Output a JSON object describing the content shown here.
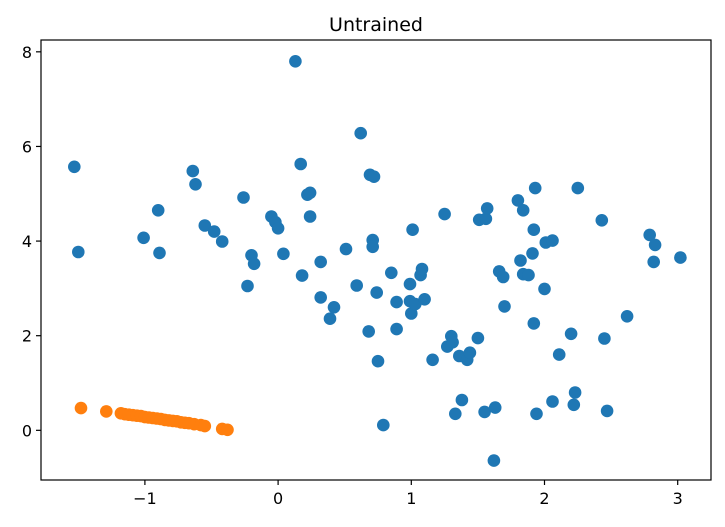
{
  "chart_data": {
    "type": "scatter",
    "title": "Untrained",
    "xlabel": "",
    "ylabel": "",
    "xlim": [
      -1.78,
      3.25
    ],
    "ylim": [
      -1.05,
      8.25
    ],
    "xticks": [
      -1,
      0,
      1,
      2,
      3
    ],
    "xtick_labels": [
      "−1",
      "0",
      "1",
      "2",
      "3"
    ],
    "yticks": [
      0,
      2,
      4,
      6,
      8
    ],
    "ytick_labels": [
      "0",
      "2",
      "4",
      "6",
      "8"
    ],
    "grid": false,
    "legend": false,
    "series": [
      {
        "color": "#1f77b4",
        "points": [
          [
            0.13,
            7.8
          ],
          [
            0.62,
            6.28
          ],
          [
            -1.53,
            5.57
          ],
          [
            -1.5,
            3.77
          ],
          [
            0.17,
            5.63
          ],
          [
            0.69,
            5.4
          ],
          [
            0.72,
            5.36
          ],
          [
            -0.64,
            5.48
          ],
          [
            -0.62,
            5.2
          ],
          [
            -0.9,
            4.65
          ],
          [
            -0.55,
            4.33
          ],
          [
            -0.48,
            4.2
          ],
          [
            -0.42,
            3.99
          ],
          [
            -1.01,
            4.07
          ],
          [
            -0.89,
            3.75
          ],
          [
            -0.26,
            4.92
          ],
          [
            -0.2,
            3.7
          ],
          [
            -0.18,
            3.52
          ],
          [
            -0.23,
            3.05
          ],
          [
            -0.05,
            4.52
          ],
          [
            -0.02,
            4.4
          ],
          [
            0.0,
            4.27
          ],
          [
            0.04,
            3.73
          ],
          [
            0.22,
            4.98
          ],
          [
            0.24,
            5.02
          ],
          [
            0.24,
            4.52
          ],
          [
            0.18,
            3.27
          ],
          [
            0.32,
            3.56
          ],
          [
            0.32,
            2.81
          ],
          [
            0.39,
            2.36
          ],
          [
            0.42,
            2.6
          ],
          [
            0.51,
            3.83
          ],
          [
            0.59,
            3.06
          ],
          [
            0.71,
            4.02
          ],
          [
            0.71,
            3.88
          ],
          [
            0.74,
            2.91
          ],
          [
            0.68,
            2.09
          ],
          [
            0.75,
            1.46
          ],
          [
            0.79,
            0.11
          ],
          [
            0.85,
            3.33
          ],
          [
            0.89,
            2.71
          ],
          [
            0.89,
            2.14
          ],
          [
            0.99,
            3.09
          ],
          [
            0.99,
            2.73
          ],
          [
            1.0,
            2.47
          ],
          [
            1.01,
            4.24
          ],
          [
            1.03,
            2.67
          ],
          [
            1.07,
            3.28
          ],
          [
            1.08,
            3.41
          ],
          [
            1.1,
            2.77
          ],
          [
            1.16,
            1.49
          ],
          [
            1.25,
            4.57
          ],
          [
            1.27,
            1.77
          ],
          [
            1.3,
            1.99
          ],
          [
            1.31,
            1.86
          ],
          [
            1.33,
            0.35
          ],
          [
            1.36,
            1.57
          ],
          [
            1.38,
            0.64
          ],
          [
            1.42,
            1.49
          ],
          [
            1.44,
            1.64
          ],
          [
            1.5,
            1.95
          ],
          [
            1.51,
            4.45
          ],
          [
            1.56,
            4.47
          ],
          [
            1.57,
            4.69
          ],
          [
            1.55,
            0.39
          ],
          [
            1.63,
            0.48
          ],
          [
            1.62,
            -0.64
          ],
          [
            1.66,
            3.36
          ],
          [
            1.69,
            3.24
          ],
          [
            1.7,
            2.62
          ],
          [
            1.8,
            4.86
          ],
          [
            1.84,
            4.65
          ],
          [
            1.82,
            3.59
          ],
          [
            1.84,
            3.3
          ],
          [
            1.88,
            3.28
          ],
          [
            1.91,
            3.74
          ],
          [
            1.92,
            4.24
          ],
          [
            1.93,
            5.12
          ],
          [
            1.92,
            2.26
          ],
          [
            1.94,
            0.35
          ],
          [
            2.0,
            2.99
          ],
          [
            2.01,
            3.97
          ],
          [
            2.06,
            4.01
          ],
          [
            2.06,
            0.61
          ],
          [
            2.11,
            1.6
          ],
          [
            2.2,
            2.04
          ],
          [
            2.22,
            0.54
          ],
          [
            2.23,
            0.8
          ],
          [
            2.25,
            5.12
          ],
          [
            2.43,
            4.44
          ],
          [
            2.45,
            1.94
          ],
          [
            2.47,
            0.41
          ],
          [
            2.62,
            2.41
          ],
          [
            2.79,
            4.13
          ],
          [
            2.83,
            3.92
          ],
          [
            2.82,
            3.56
          ],
          [
            3.02,
            3.65
          ]
        ]
      },
      {
        "color": "#ff7f0e",
        "points": [
          [
            -1.48,
            0.47
          ],
          [
            -1.29,
            0.4
          ],
          [
            -1.18,
            0.36
          ],
          [
            -1.15,
            0.34
          ],
          [
            -1.12,
            0.33
          ],
          [
            -1.09,
            0.32
          ],
          [
            -1.06,
            0.31
          ],
          [
            -1.03,
            0.3
          ],
          [
            -1.0,
            0.28
          ],
          [
            -0.97,
            0.27
          ],
          [
            -0.94,
            0.26
          ],
          [
            -0.91,
            0.25
          ],
          [
            -0.88,
            0.24
          ],
          [
            -0.85,
            0.22
          ],
          [
            -0.82,
            0.21
          ],
          [
            -0.79,
            0.2
          ],
          [
            -0.76,
            0.19
          ],
          [
            -0.73,
            0.17
          ],
          [
            -0.7,
            0.16
          ],
          [
            -0.67,
            0.15
          ],
          [
            -0.63,
            0.13
          ],
          [
            -0.58,
            0.11
          ],
          [
            -0.55,
            0.09
          ],
          [
            -0.42,
            0.03
          ],
          [
            -0.38,
            0.01
          ]
        ]
      }
    ]
  }
}
